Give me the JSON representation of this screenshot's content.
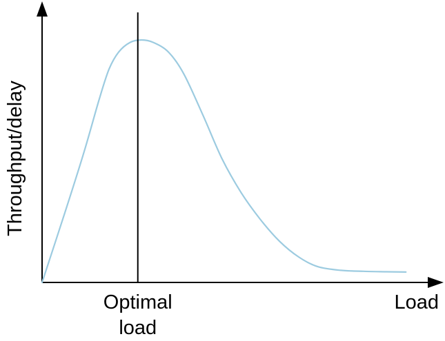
{
  "chart_data": {
    "type": "line",
    "title": "",
    "xlabel": "Load",
    "ylabel": "Throughput/delay",
    "xlim": [
      0,
      1
    ],
    "ylim": [
      0,
      1
    ],
    "grid": false,
    "legend": "none",
    "series": [
      {
        "color": "#9ccbe0",
        "points": [
          [
            0.0,
            0.0
          ],
          [
            0.06,
            0.29
          ],
          [
            0.11,
            0.54
          ],
          [
            0.15,
            0.76
          ],
          [
            0.175,
            0.88
          ],
          [
            0.2,
            0.95
          ],
          [
            0.23,
            0.99
          ],
          [
            0.26,
            1.0
          ],
          [
            0.29,
            0.99
          ],
          [
            0.33,
            0.95
          ],
          [
            0.37,
            0.86
          ],
          [
            0.42,
            0.69
          ],
          [
            0.47,
            0.51
          ],
          [
            0.52,
            0.37
          ],
          [
            0.57,
            0.26
          ],
          [
            0.62,
            0.17
          ],
          [
            0.67,
            0.105
          ],
          [
            0.72,
            0.065
          ],
          [
            0.78,
            0.05
          ],
          [
            0.84,
            0.046
          ],
          [
            0.9,
            0.044
          ],
          [
            0.95,
            0.043
          ]
        ]
      }
    ],
    "annotations": [
      {
        "type": "vline",
        "x": 0.25,
        "label_line1": "Optimal",
        "label_line2": "load",
        "color": "#000000"
      }
    ],
    "axis_color": "#000000"
  }
}
